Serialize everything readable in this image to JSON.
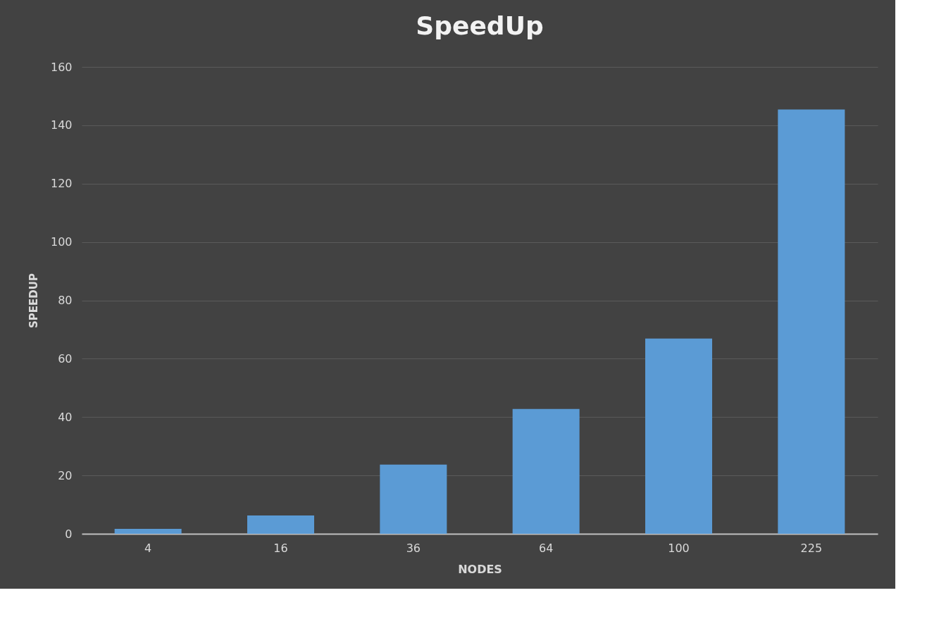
{
  "chart_data": {
    "type": "bar",
    "title": "SpeedUp",
    "xlabel": "NODES",
    "ylabel": "SPEEDUP",
    "categories": [
      "4",
      "16",
      "36",
      "64",
      "100",
      "225"
    ],
    "values": [
      1.7,
      6.3,
      23.7,
      42.8,
      66.9,
      145.4
    ],
    "color": "#5b9bd5",
    "ylim": [
      0,
      160
    ],
    "yticks": [
      0,
      20,
      40,
      60,
      80,
      100,
      120,
      140,
      160
    ],
    "grid": "y"
  }
}
